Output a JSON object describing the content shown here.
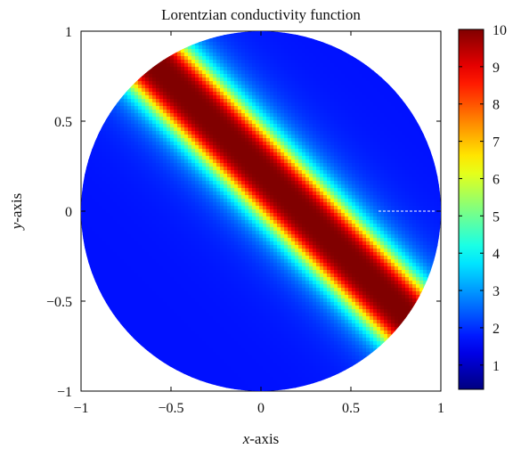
{
  "chart_data": {
    "type": "heatmap",
    "title": "Lorentzian conductivity function",
    "xlabel_var": "x",
    "xlabel_suffix": "-axis",
    "ylabel_var": "y",
    "ylabel_suffix": "-axis",
    "xlim": [
      -1,
      1
    ],
    "ylim": [
      -1,
      1
    ],
    "domain_shape": "unit disk",
    "x_ticks": [
      {
        "value": -1,
        "label": "−1"
      },
      {
        "value": -0.5,
        "label": "−0.5"
      },
      {
        "value": 0,
        "label": "0"
      },
      {
        "value": 0.5,
        "label": "0.5"
      },
      {
        "value": 1,
        "label": "1"
      }
    ],
    "y_ticks": [
      {
        "value": 1,
        "label": "1"
      },
      {
        "value": 0.5,
        "label": "0.5"
      },
      {
        "value": 0,
        "label": "0"
      },
      {
        "value": -0.5,
        "label": "−0.5"
      },
      {
        "value": -1,
        "label": "−1"
      }
    ],
    "colorbar": {
      "colormap": "jet",
      "range": [
        0.35,
        10
      ],
      "ticks": [
        1,
        2,
        3,
        4,
        5,
        6,
        7,
        8,
        9,
        10
      ],
      "tick_labels": [
        "1",
        "2",
        "3",
        "4",
        "5",
        "6",
        "7",
        "8",
        "9",
        "10"
      ]
    },
    "field": {
      "function": "lorentzian ridge",
      "ridge_direction": "from upper-left to lower-right",
      "peak_value": 10,
      "background_value": 1.7
    }
  }
}
